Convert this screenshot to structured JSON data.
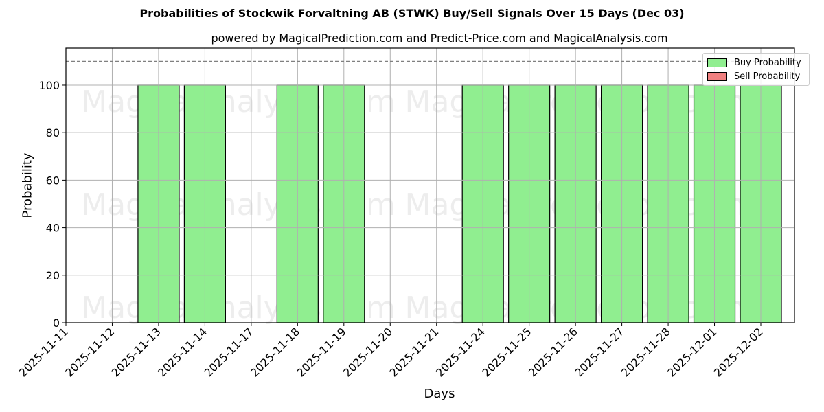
{
  "chart_data": {
    "type": "bar",
    "title": "Probabilities of Stockwik Forvaltning AB (STWK) Buy/Sell Signals Over 15 Days (Dec 03)",
    "subtitle": "powered by MagicalPrediction.com and Predict-Price.com and MagicalAnalysis.com",
    "xlabel": "Days",
    "ylabel": "Probability",
    "ylim": [
      0,
      115.6
    ],
    "yticks": [
      0,
      20,
      40,
      60,
      80,
      100
    ],
    "grid": true,
    "legend_position": "upper right",
    "reference_line": {
      "y": 110,
      "style": "dashed",
      "color": "#808080"
    },
    "categories": [
      "2025-11-11",
      "2025-11-12",
      "2025-11-13",
      "2025-11-14",
      "2025-11-17",
      "2025-11-18",
      "2025-11-19",
      "2025-11-20",
      "2025-11-21",
      "2025-11-24",
      "2025-11-25",
      "2025-11-26",
      "2025-11-27",
      "2025-11-28",
      "2025-12-01",
      "2025-12-02"
    ],
    "series": [
      {
        "name": "Buy Probability",
        "color": "#90ee90",
        "values": [
          0,
          0,
          100,
          100,
          0,
          100,
          100,
          0,
          0,
          100,
          100,
          100,
          100,
          100,
          100,
          100
        ]
      },
      {
        "name": "Sell Probability",
        "color": "#f08080",
        "values": [
          0,
          0,
          0,
          0,
          0,
          0,
          0,
          0,
          0,
          0,
          0,
          0,
          0,
          0,
          0,
          0
        ]
      }
    ],
    "watermarks": [
      "MagicalAnalysis.com",
      "MagicalPrediction.com"
    ]
  },
  "legend": {
    "buy_label": "Buy Probability",
    "sell_label": "Sell Probability"
  }
}
